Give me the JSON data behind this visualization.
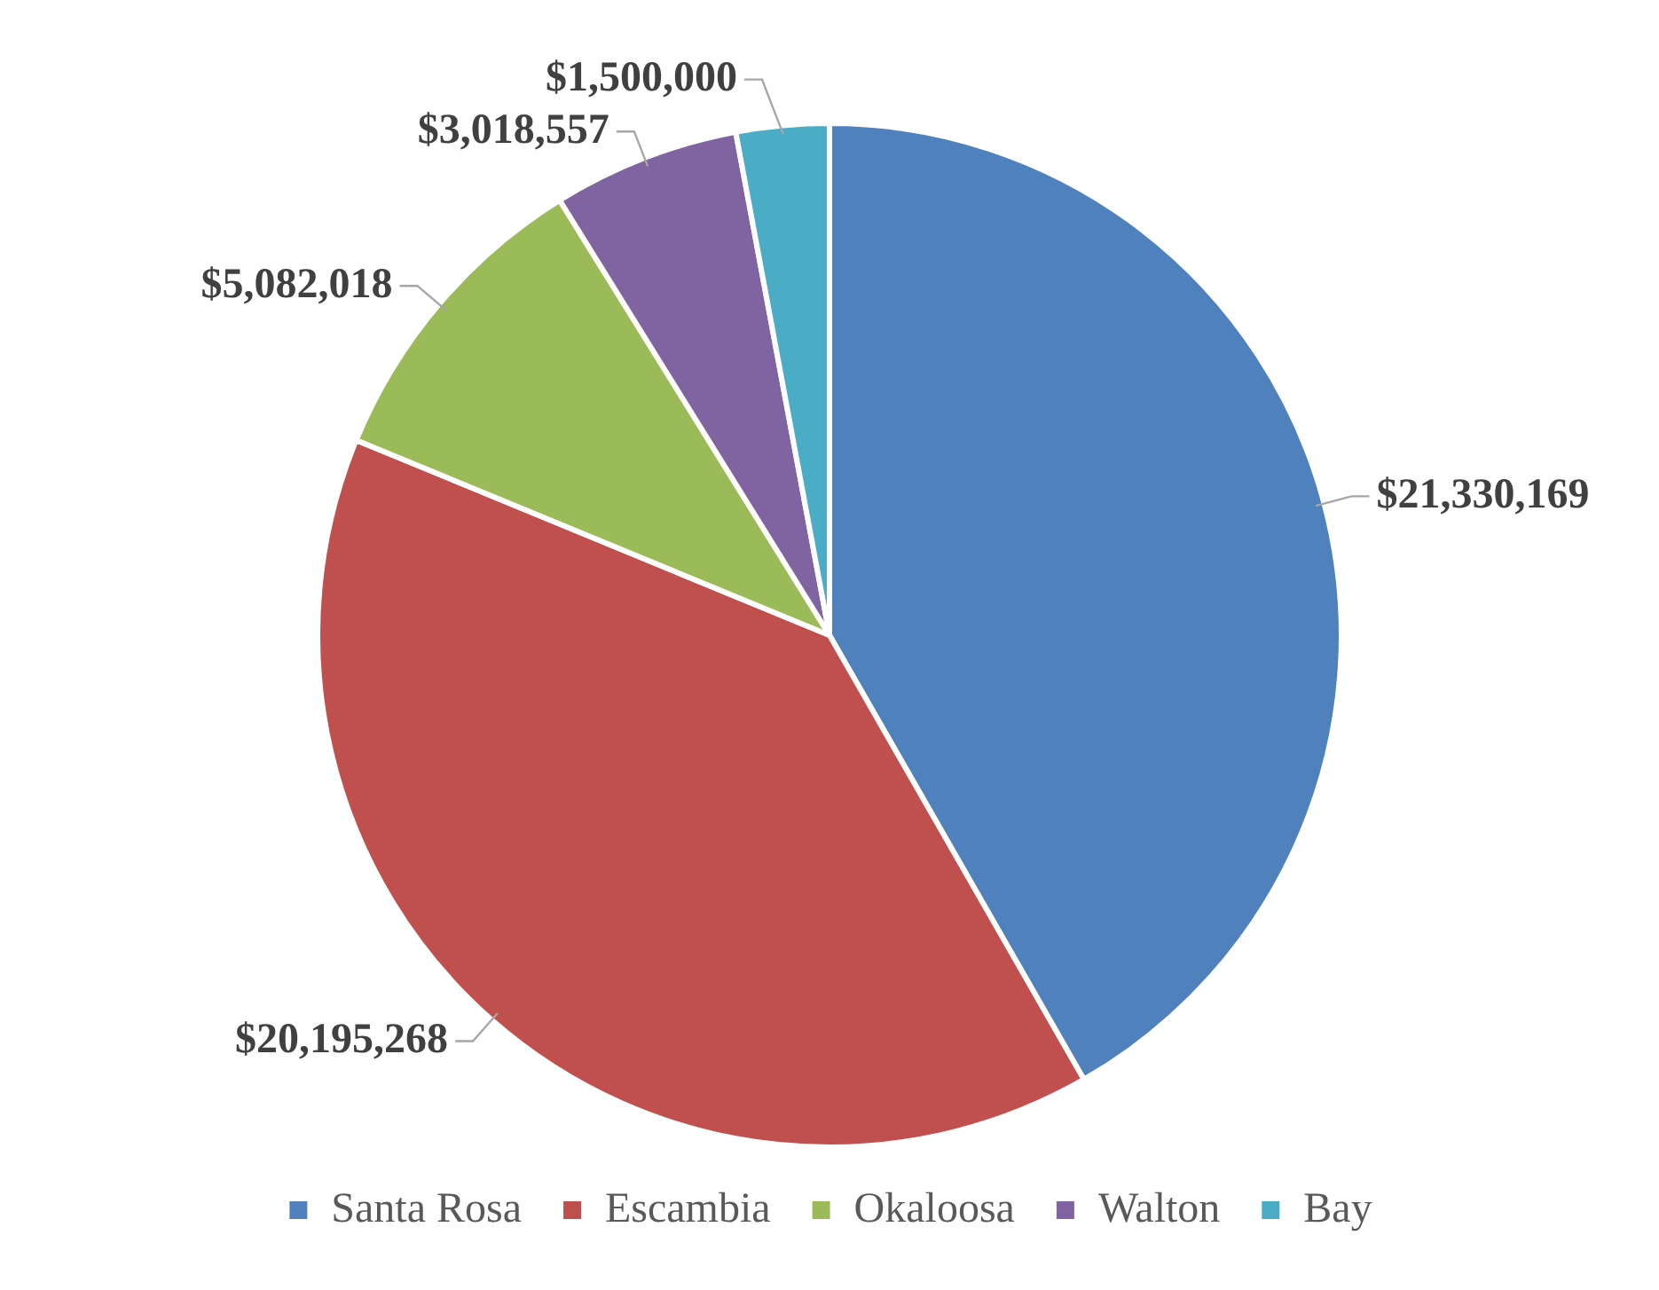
{
  "chart_data": {
    "type": "pie",
    "categories": [
      "Santa Rosa",
      "Escambia",
      "Okaloosa",
      "Walton",
      "Bay"
    ],
    "values": [
      21330169,
      20195268,
      5082018,
      3018557,
      1500000
    ],
    "value_labels": [
      "$21,330,169",
      "$20,195,268",
      "$5,082,018",
      "$3,018,557",
      "$1,500,000"
    ],
    "colors": [
      "#4f81bd",
      "#c0504d",
      "#9bbb59",
      "#8064a2",
      "#4bacc6"
    ],
    "legend": "bottom"
  }
}
